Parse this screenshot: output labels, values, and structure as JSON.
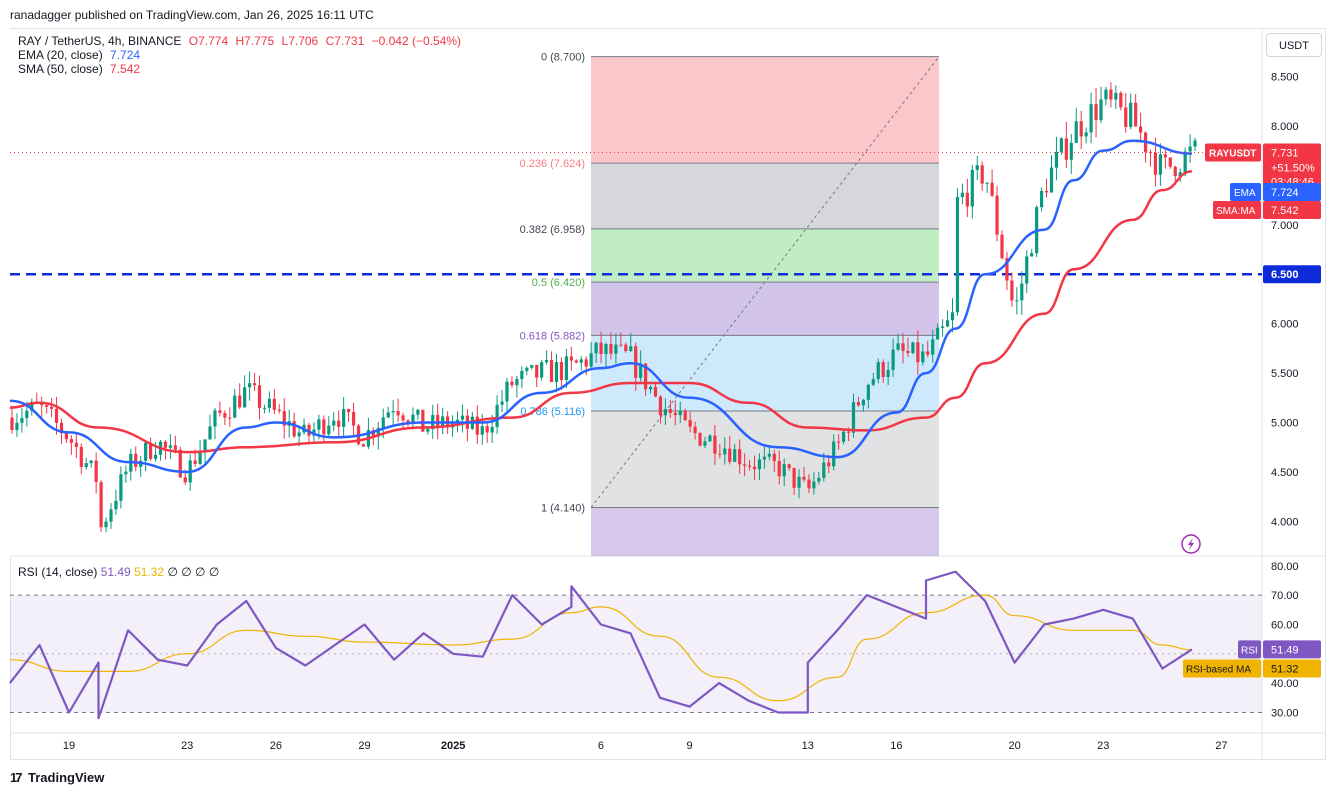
{
  "header": {
    "publisher": "ranadagger published on TradingView.com, Jan 26, 2025 16:11 UTC",
    "currency": "USDT",
    "brand": "TradingView"
  },
  "legend": {
    "symbol": "RAY / TetherUS, 4h, BINANCE",
    "open": "O7.774",
    "high": "H7.775",
    "low": "L7.706",
    "close": "C7.731",
    "change": "−0.042 (−0.54%)",
    "ema_label": "EMA (20, close)",
    "ema_value": "7.724",
    "sma_label": "SMA (50, close)",
    "sma_value": "7.542",
    "rsi_label": "RSI (14, close)",
    "rsi_value": "51.49",
    "rsi_ma_value": "51.32",
    "rsi_extra": "∅ ∅ ∅ ∅"
  },
  "colors": {
    "up": "#089981",
    "down": "#f23645",
    "ema": "#2962ff",
    "sma": "#f23645",
    "rsi": "#7e57c2",
    "rsi_ma": "#f0b400",
    "support": "#0d2bd8"
  },
  "chart_data": [
    {
      "type": "candlestick",
      "title": "RAY / TetherUS, 4h, BINANCE",
      "x_ticks": [
        "19",
        "23",
        "26",
        "29",
        "2025",
        "6",
        "9",
        "13",
        "16",
        "20",
        "23",
        "27"
      ],
      "y_ticks": [
        "8.500",
        "8.000",
        "7.500",
        "7.000",
        "6.500",
        "6.000",
        "5.500",
        "5.000",
        "4.500",
        "4.000"
      ],
      "ylim": [
        3.65,
        8.98
      ],
      "price_path": [
        {
          "x": "Dec 17",
          "price": 5.05
        },
        {
          "x": "Dec 18",
          "price": 5.15
        },
        {
          "x": "Dec 19",
          "price": 4.85
        },
        {
          "x": "Dec 20",
          "price": 4.4
        },
        {
          "x": "Dec 20",
          "price": 3.88
        },
        {
          "x": "Dec 21",
          "price": 4.55
        },
        {
          "x": "Dec 22",
          "price": 4.8
        },
        {
          "x": "Dec 23",
          "price": 4.5
        },
        {
          "x": "Dec 24",
          "price": 5.05
        },
        {
          "x": "Dec 25",
          "price": 5.32
        },
        {
          "x": "Dec 27",
          "price": 4.85
        },
        {
          "x": "Dec 28",
          "price": 5.1
        },
        {
          "x": "Dec 29",
          "price": 4.85
        },
        {
          "x": "Dec 30",
          "price": 5.2
        },
        {
          "x": "Dec 31",
          "price": 4.95
        },
        {
          "x": "Jan 1",
          "price": 5.0
        },
        {
          "x": "Jan 2",
          "price": 4.9
        },
        {
          "x": "Jan 3",
          "price": 5.4
        },
        {
          "x": "Jan 4",
          "price": 5.5
        },
        {
          "x": "Jan 5",
          "price": 5.55
        },
        {
          "x": "Jan 6",
          "price": 5.72
        },
        {
          "x": "Jan 7",
          "price": 5.65
        },
        {
          "x": "Jan 8",
          "price": 5.2
        },
        {
          "x": "Jan 9",
          "price": 4.9
        },
        {
          "x": "Jan 10",
          "price": 4.8
        },
        {
          "x": "Jan 11",
          "price": 4.6
        },
        {
          "x": "Jan 12",
          "price": 4.55
        },
        {
          "x": "Jan 13",
          "price": 4.3
        },
        {
          "x": "Jan 14",
          "price": 4.75
        },
        {
          "x": "Jan 15",
          "price": 5.4
        },
        {
          "x": "Jan 16",
          "price": 5.7
        },
        {
          "x": "Jan 17",
          "price": 5.65
        },
        {
          "x": "Jan 18",
          "price": 6.1
        },
        {
          "x": "Jan 18",
          "price": 7.2
        },
        {
          "x": "Jan 19",
          "price": 7.55
        },
        {
          "x": "Jan 20",
          "price": 6.1
        },
        {
          "x": "Jan 21",
          "price": 7.4
        },
        {
          "x": "Jan 22",
          "price": 7.95
        },
        {
          "x": "Jan 23",
          "price": 8.25
        },
        {
          "x": "Jan 24",
          "price": 8.05
        },
        {
          "x": "Jan 25",
          "price": 7.55
        },
        {
          "x": "Jan 26",
          "price": 7.73
        }
      ],
      "ema20": [
        {
          "x": "Dec 17",
          "v": 5.22
        },
        {
          "x": "Dec 19",
          "v": 4.9
        },
        {
          "x": "Dec 21",
          "v": 4.6
        },
        {
          "x": "Dec 23",
          "v": 4.5
        },
        {
          "x": "Dec 25",
          "v": 4.95
        },
        {
          "x": "Dec 26",
          "v": 5.0
        },
        {
          "x": "Dec 28",
          "v": 4.85
        },
        {
          "x": "Dec 31",
          "v": 5.0
        },
        {
          "x": "Jan 2",
          "v": 5.0
        },
        {
          "x": "Jan 4",
          "v": 5.3
        },
        {
          "x": "Jan 6",
          "v": 5.55
        },
        {
          "x": "Jan 7",
          "v": 5.6
        },
        {
          "x": "Jan 9",
          "v": 5.25
        },
        {
          "x": "Jan 12",
          "v": 4.75
        },
        {
          "x": "Jan 14",
          "v": 4.65
        },
        {
          "x": "Jan 16",
          "v": 5.1
        },
        {
          "x": "Jan 17",
          "v": 5.5
        },
        {
          "x": "Jan 18",
          "v": 5.95
        },
        {
          "x": "Jan 19",
          "v": 6.5
        },
        {
          "x": "Jan 21",
          "v": 6.95
        },
        {
          "x": "Jan 22",
          "v": 7.45
        },
        {
          "x": "Jan 23",
          "v": 7.75
        },
        {
          "x": "Jan 24",
          "v": 7.85
        },
        {
          "x": "Jan 26",
          "v": 7.72
        }
      ],
      "sma50": [
        {
          "x": "Dec 17",
          "v": 5.15
        },
        {
          "x": "Dec 18",
          "v": 5.2
        },
        {
          "x": "Dec 20",
          "v": 4.95
        },
        {
          "x": "Dec 23",
          "v": 4.7
        },
        {
          "x": "Dec 25",
          "v": 4.75
        },
        {
          "x": "Dec 28",
          "v": 4.8
        },
        {
          "x": "Dec 31",
          "v": 4.95
        },
        {
          "x": "Jan 3",
          "v": 5.05
        },
        {
          "x": "Jan 5",
          "v": 5.3
        },
        {
          "x": "Jan 7",
          "v": 5.4
        },
        {
          "x": "Jan 9",
          "v": 5.4
        },
        {
          "x": "Jan 11",
          "v": 5.2
        },
        {
          "x": "Jan 13",
          "v": 4.95
        },
        {
          "x": "Jan 15",
          "v": 4.92
        },
        {
          "x": "Jan 17",
          "v": 5.05
        },
        {
          "x": "Jan 18",
          "v": 5.25
        },
        {
          "x": "Jan 19",
          "v": 5.6
        },
        {
          "x": "Jan 21",
          "v": 6.1
        },
        {
          "x": "Jan 22",
          "v": 6.55
        },
        {
          "x": "Jan 24",
          "v": 7.05
        },
        {
          "x": "Jan 25",
          "v": 7.35
        },
        {
          "x": "Jan 26",
          "v": 7.54
        }
      ],
      "fibonacci": [
        {
          "label": "0 (8.700)",
          "value": 8.7,
          "fill": "rgba(242,54,69,0.28)"
        },
        {
          "label": "0.236 (7.624)",
          "value": 7.624,
          "fill": "rgba(120,123,134,0.30)"
        },
        {
          "label": "0.382 (6.958)",
          "value": 6.958,
          "fill": "rgba(76,204,80,0.35)"
        },
        {
          "label": "0.5 (6.420)",
          "value": 6.42,
          "fill": "rgba(126,87,194,0.35)"
        },
        {
          "label": "0.618 (5.882)",
          "value": 5.882,
          "fill": "rgba(33,150,243,0.22)"
        },
        {
          "label": "0.786 (5.116)",
          "value": 5.116,
          "fill": "rgba(120,123,134,0.22)"
        },
        {
          "label": "1 (4.140)",
          "value": 4.14,
          "fill": "rgba(103,58,183,0.28)"
        }
      ],
      "support_line": {
        "value": 6.5,
        "label": "6.500"
      },
      "price_tags": {
        "symbol": "RAYUSDT",
        "price": "7.731",
        "change": "+51.50%",
        "countdown": "03:48:46",
        "ema_tag": "EMA",
        "ema_value": "7.724",
        "sma_tag": "SMA:MA",
        "sma_value": "7.542"
      }
    },
    {
      "type": "line",
      "title": "RSI (14, close)",
      "y_ticks": [
        "80.00",
        "70.00",
        "60.00",
        "50.00",
        "40.00",
        "30.00"
      ],
      "ylim": [
        23,
        83
      ],
      "bands": {
        "upper": 70,
        "lower": 30
      },
      "rsi": [
        {
          "x": "Dec 17",
          "v": 40
        },
        {
          "x": "Dec 18",
          "v": 53
        },
        {
          "x": "Dec 19",
          "v": 30
        },
        {
          "x": "Dec 20",
          "v": 47
        },
        {
          "x": "Dec 20",
          "v": 28
        },
        {
          "x": "Dec 21",
          "v": 58
        },
        {
          "x": "Dec 22",
          "v": 48
        },
        {
          "x": "Dec 23",
          "v": 46
        },
        {
          "x": "Dec 24",
          "v": 60
        },
        {
          "x": "Dec 25",
          "v": 68
        },
        {
          "x": "Dec 26",
          "v": 52
        },
        {
          "x": "Dec 27",
          "v": 46
        },
        {
          "x": "Dec 29",
          "v": 60
        },
        {
          "x": "Dec 30",
          "v": 48
        },
        {
          "x": "Dec 31",
          "v": 57
        },
        {
          "x": "Jan 1",
          "v": 50
        },
        {
          "x": "Jan 2",
          "v": 49
        },
        {
          "x": "Jan 3",
          "v": 70
        },
        {
          "x": "Jan 4",
          "v": 60
        },
        {
          "x": "Jan 5",
          "v": 66
        },
        {
          "x": "Jan 5",
          "v": 73
        },
        {
          "x": "Jan 6",
          "v": 60
        },
        {
          "x": "Jan 7",
          "v": 57
        },
        {
          "x": "Jan 8",
          "v": 35
        },
        {
          "x": "Jan 9",
          "v": 32
        },
        {
          "x": "Jan 10",
          "v": 40
        },
        {
          "x": "Jan 11",
          "v": 34
        },
        {
          "x": "Jan 12",
          "v": 30
        },
        {
          "x": "Jan 13",
          "v": 30
        },
        {
          "x": "Jan 13",
          "v": 47
        },
        {
          "x": "Jan 14",
          "v": 58
        },
        {
          "x": "Jan 15",
          "v": 70
        },
        {
          "x": "Jan 16",
          "v": 66
        },
        {
          "x": "Jan 17",
          "v": 62
        },
        {
          "x": "Jan 17",
          "v": 75
        },
        {
          "x": "Jan 18",
          "v": 78
        },
        {
          "x": "Jan 19",
          "v": 68
        },
        {
          "x": "Jan 20",
          "v": 47
        },
        {
          "x": "Jan 21",
          "v": 60
        },
        {
          "x": "Jan 22",
          "v": 62
        },
        {
          "x": "Jan 23",
          "v": 65
        },
        {
          "x": "Jan 24",
          "v": 62
        },
        {
          "x": "Jan 25",
          "v": 45
        },
        {
          "x": "Jan 26",
          "v": 51.49
        }
      ],
      "rsi_ma": [
        {
          "x": "Dec 17",
          "v": 48
        },
        {
          "x": "Dec 19",
          "v": 44
        },
        {
          "x": "Dec 21",
          "v": 44
        },
        {
          "x": "Dec 23",
          "v": 50
        },
        {
          "x": "Dec 25",
          "v": 58
        },
        {
          "x": "Dec 27",
          "v": 56
        },
        {
          "x": "Dec 29",
          "v": 54
        },
        {
          "x": "Jan 1",
          "v": 53
        },
        {
          "x": "Jan 3",
          "v": 55
        },
        {
          "x": "Jan 5",
          "v": 64
        },
        {
          "x": "Jan 6",
          "v": 66
        },
        {
          "x": "Jan 8",
          "v": 56
        },
        {
          "x": "Jan 10",
          "v": 42
        },
        {
          "x": "Jan 12",
          "v": 34
        },
        {
          "x": "Jan 14",
          "v": 42
        },
        {
          "x": "Jan 15",
          "v": 55
        },
        {
          "x": "Jan 17",
          "v": 64
        },
        {
          "x": "Jan 19",
          "v": 70
        },
        {
          "x": "Jan 20",
          "v": 63
        },
        {
          "x": "Jan 22",
          "v": 58
        },
        {
          "x": "Jan 24",
          "v": 58
        },
        {
          "x": "Jan 25",
          "v": 53
        },
        {
          "x": "Jan 26",
          "v": 51.32
        }
      ],
      "tags": {
        "rsi_tag": "RSI",
        "rsi_value": "51.49",
        "rsima_tag": "RSI-based MA",
        "rsima_value": "51.32"
      }
    }
  ]
}
